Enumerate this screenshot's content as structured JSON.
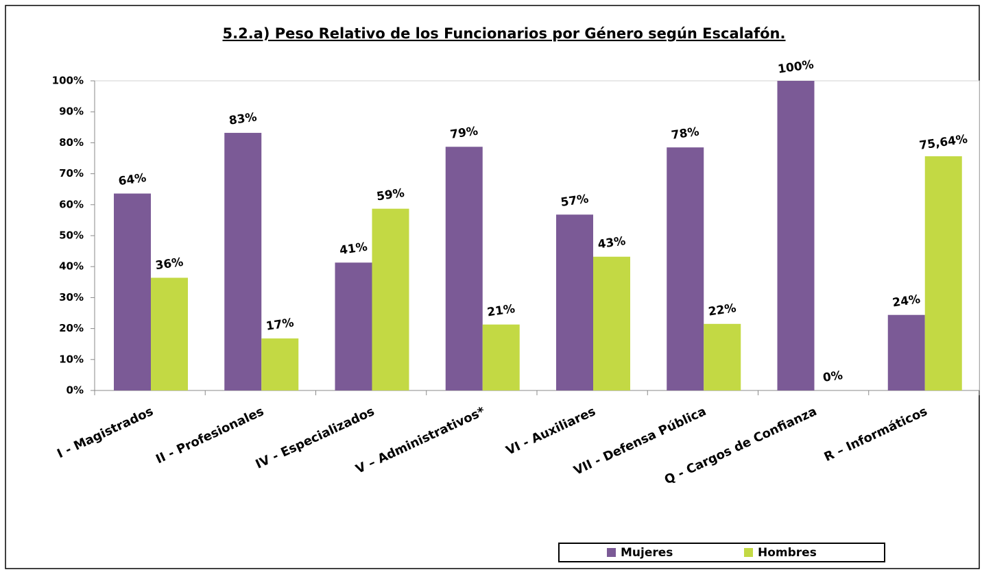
{
  "chart_data": {
    "type": "bar",
    "title": "5.2.a) Peso Relativo de los Funcionarios por Género según Escalafón.",
    "categories": [
      "I - Magistrados",
      "II - Profesionales",
      "IV - Especializados",
      "V – Administrativos*",
      "VI - Auxiliares",
      "VII - Defensa Pública",
      "Q - Cargos de Confianza",
      "R – Informáticos"
    ],
    "series": [
      {
        "name": "Mujeres",
        "color": "#7b5a96",
        "values": [
          63.6,
          83.2,
          41.3,
          78.7,
          56.8,
          78.5,
          100,
          24.4
        ],
        "value_labels": [
          "64%",
          "83%",
          "41%",
          "79%",
          "57%",
          "78%",
          "100%",
          "24%"
        ]
      },
      {
        "name": "Hombres",
        "color": "#c3d944",
        "values": [
          36.4,
          16.8,
          58.7,
          21.3,
          43.2,
          21.5,
          0,
          75.64
        ],
        "value_labels": [
          "36%",
          "17%",
          "59%",
          "21%",
          "43%",
          "22%",
          "0%",
          "75,64%"
        ]
      }
    ],
    "ylim": [
      0,
      100
    ],
    "yticks": [
      {
        "value": 0,
        "label": "0%"
      },
      {
        "value": 10,
        "label": "10%"
      },
      {
        "value": 20,
        "label": "20%"
      },
      {
        "value": 30,
        "label": "30%"
      },
      {
        "value": 40,
        "label": "40%"
      },
      {
        "value": 50,
        "label": "50%"
      },
      {
        "value": 60,
        "label": "60%"
      },
      {
        "value": 70,
        "label": "70%"
      },
      {
        "value": 80,
        "label": "80%"
      },
      {
        "value": 90,
        "label": "90%"
      },
      {
        "value": 100,
        "label": "100%"
      }
    ],
    "legend": "bottom-right"
  }
}
